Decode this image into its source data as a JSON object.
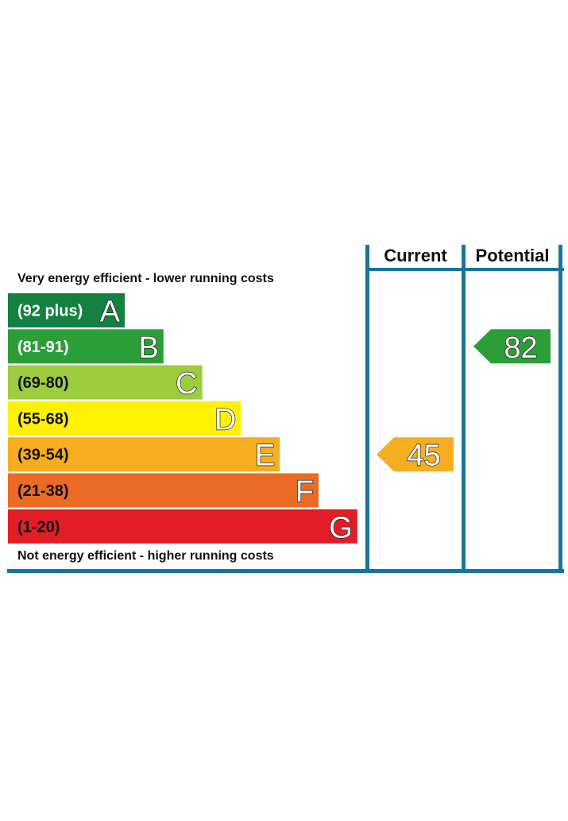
{
  "chart_data": {
    "type": "bar",
    "top_caption": "Very energy efficient - lower running costs",
    "bottom_caption": "Not energy efficient - higher running costs",
    "columns": [
      "Current",
      "Potential"
    ],
    "bands": [
      {
        "letter": "A",
        "range": "(92 plus)",
        "color": "#138140",
        "label_dark": false
      },
      {
        "letter": "B",
        "range": "(81-91)",
        "color": "#2c9e37",
        "label_dark": false
      },
      {
        "letter": "C",
        "range": "(69-80)",
        "color": "#9dcc3f",
        "label_dark": true
      },
      {
        "letter": "D",
        "range": "(55-68)",
        "color": "#fff200",
        "label_dark": true
      },
      {
        "letter": "E",
        "range": "(39-54)",
        "color": "#f6ad20",
        "label_dark": true
      },
      {
        "letter": "F",
        "range": "(21-38)",
        "color": "#eb6a24",
        "label_dark": true
      },
      {
        "letter": "G",
        "range": "(1-20)",
        "color": "#e31d25",
        "label_dark": true
      }
    ],
    "current": {
      "value": 45,
      "band": "E",
      "color": "#f6ad20"
    },
    "potential": {
      "value": 82,
      "band": "B",
      "color": "#2c9e37"
    },
    "frame_color": "#17759c"
  }
}
